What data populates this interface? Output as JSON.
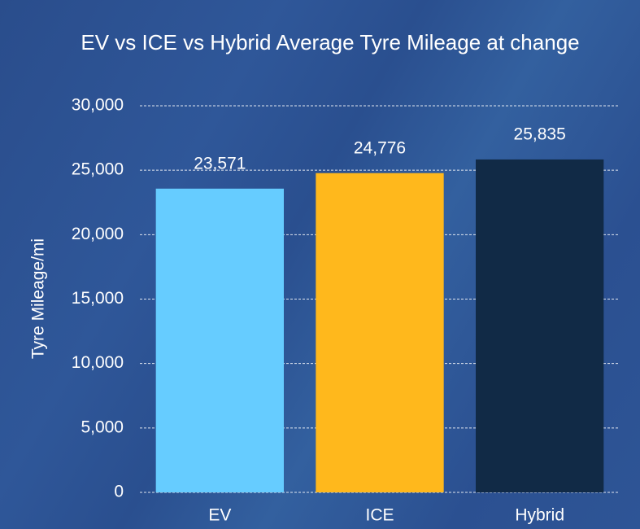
{
  "chart_data": {
    "type": "bar",
    "title": "EV vs ICE vs Hybrid Average Tyre Mileage at change",
    "y_label": "Tyre Mileage/mi",
    "categories": [
      "EV",
      "ICE",
      "Hybrid"
    ],
    "values": [
      23571,
      24776,
      25835
    ],
    "value_labels": [
      "23,571",
      "24,776",
      "25,835"
    ],
    "colors": [
      "#66ccff",
      "#ffb81c",
      "#112a46"
    ],
    "ylim": [
      0,
      30000
    ],
    "yticks": [
      0,
      {
        "value": 5000,
        "label": "5,000"
      },
      {
        "value": 10000,
        "label": "10,000"
      },
      {
        "value": 15000,
        "label": "15,000"
      },
      {
        "value": 20000,
        "label": "20,000"
      },
      {
        "value": 25000,
        "label": "25,000"
      },
      {
        "value": 30000,
        "label": "30,000"
      }
    ],
    "grid": true
  }
}
